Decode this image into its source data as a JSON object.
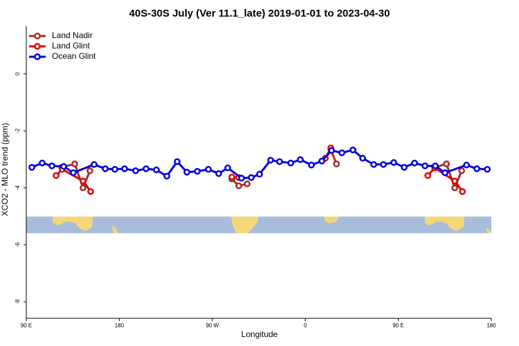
{
  "chart_data": {
    "type": "line",
    "title": "40S-30S July (Ver 11.1_late)   2019-01-01 to 2023-04-30",
    "xlabel": "Longitude",
    "ylabel": "XCO2 - MLO trend (ppm)",
    "xlim": [
      90,
      540
    ],
    "ylim": [
      -8.58,
      1.67
    ],
    "xticks": [
      {
        "value": 90,
        "label": "90 E"
      },
      180,
      {
        "value": 270,
        "label": "90 W"
      },
      {
        "value": 360,
        "label": "0"
      },
      {
        "value": 450,
        "label": "90 E"
      },
      {
        "value": 540,
        "label": "180"
      }
    ],
    "yticks": [
      0,
      -2,
      -4,
      -6,
      -8
    ],
    "legend": "top-left",
    "series": [
      {
        "name": "Land Nadir",
        "color": "#a52a2a",
        "x": [
          124.2,
          136.9,
          144.9,
          151.6,
          null,
          288.9,
          295.6,
          303.7,
          null,
          384.7,
          390.1,
          null,
          485.2,
          496.6,
          504.6,
          511.3
        ],
        "values": [
          -3.28,
          -3.16,
          -4.0,
          -3.4,
          null,
          -3.69,
          -3.93,
          -3.86,
          null,
          -2.65,
          -3.16,
          null,
          -3.28,
          -3.16,
          -4.0,
          -3.4
        ]
      },
      {
        "name": "Land Glint",
        "color": "#e00000",
        "x": [
          118.8,
          124.8,
          144.9,
          152.3,
          null,
          288.9,
          295.6,
          null,
          379.4,
          384.7,
          null,
          478.5,
          485.2,
          504.6,
          512.0
        ],
        "values": [
          -3.57,
          -3.35,
          -3.76,
          -4.13,
          null,
          -3.62,
          -3.64,
          null,
          -2.96,
          -2.6,
          null,
          -3.57,
          -3.3,
          -3.76,
          -4.13
        ]
      },
      {
        "name": "Ocean Glint",
        "color": "#0000e0",
        "x": [
          95.4,
          105.4,
          114.8,
          126.2,
          135.5,
          155.6,
          166.4,
          175.7,
          185.1,
          195.8,
          205.9,
          215.9,
          226.0,
          236.0,
          245.4,
          255.5,
          266.2,
          276.2,
          284.9,
          298.3,
          307.7,
          315.7,
          326.4,
          335.1,
          345.9,
          355.2,
          365.9,
          376.0,
          385.4,
          395.4,
          406.1,
          415.5,
          426.2,
          435.6,
          445.6,
          455.7,
          465.7,
          475.8,
          485.8,
          495.2,
          516.0,
          526.0,
          536.1
        ],
        "values": [
          -3.28,
          -3.13,
          -3.23,
          -3.25,
          -3.47,
          -3.18,
          -3.33,
          -3.35,
          -3.33,
          -3.4,
          -3.33,
          -3.37,
          -3.59,
          -3.08,
          -3.45,
          -3.42,
          -3.35,
          -3.5,
          -3.3,
          -3.66,
          -3.64,
          -3.52,
          -3.03,
          -3.08,
          -3.13,
          -3.01,
          -3.2,
          -3.06,
          -2.69,
          -2.77,
          -2.67,
          -2.96,
          -3.18,
          -3.18,
          -3.11,
          -3.28,
          -3.13,
          -3.23,
          -3.23,
          -3.47,
          -3.2,
          -3.33,
          -3.35
        ]
      }
    ]
  }
}
